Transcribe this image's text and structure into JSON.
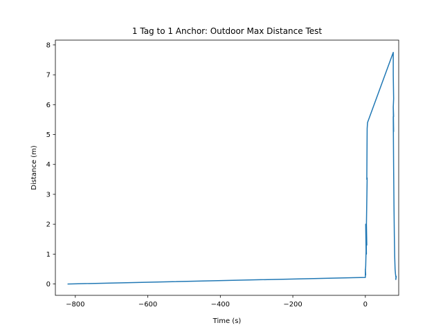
{
  "chart_data": {
    "type": "line",
    "title": "1 Tag to 1 Anchor: Outdoor Max Distance Test",
    "xlabel": "Time (s)",
    "ylabel": "Distance (m)",
    "xlim": [
      -855,
      92
    ],
    "ylim": [
      -0.38,
      8.16
    ],
    "xticks": [
      -800,
      -600,
      -400,
      -200,
      0
    ],
    "xtick_labels": [
      "−800",
      "−600",
      "−400",
      "−200",
      "0"
    ],
    "yticks": [
      0,
      1,
      2,
      3,
      4,
      5,
      6,
      7,
      8
    ],
    "ytick_labels": [
      "0",
      "1",
      "2",
      "3",
      "4",
      "5",
      "6",
      "7",
      "8"
    ],
    "grid": false,
    "line_color": "#1f77b4",
    "series": [
      {
        "x": [
          -820,
          0,
          0,
          0,
          1,
          0,
          1,
          2,
          1,
          3,
          2,
          4,
          3,
          5,
          4,
          5,
          6,
          77,
          77,
          78,
          77,
          78,
          77,
          78,
          77,
          78,
          79,
          80,
          81,
          82,
          83,
          84,
          85,
          84,
          85,
          84,
          85
        ],
        "y": [
          0.0,
          0.22,
          0.35,
          0.5,
          0.3,
          0.42,
          0.6,
          1.1,
          2.0,
          1.0,
          1.8,
          1.3,
          2.0,
          3.55,
          3.5,
          5.2,
          5.4,
          7.75,
          7.0,
          6.2,
          5.9,
          5.6,
          5.95,
          5.1,
          5.6,
          3.9,
          2.6,
          1.6,
          0.9,
          0.5,
          0.35,
          0.25,
          0.22,
          0.18,
          0.26,
          0.15,
          0.23
        ]
      }
    ]
  }
}
